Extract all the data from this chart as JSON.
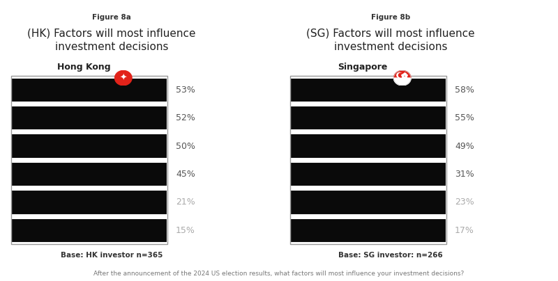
{
  "hk_title_label": "Figure 8a",
  "hk_title": "(HK) Factors will most influence\ninvestment decisions",
  "hk_subtitle": "Hong Kong",
  "hk_values": [
    53,
    52,
    50,
    45,
    21,
    15
  ],
  "hk_base": "Base: HK investor n=365",
  "sg_title_label": "Figure 8b",
  "sg_title": "(SG) Factors will most influence\ninvestment decisions",
  "sg_subtitle": "Singapore",
  "sg_values": [
    58,
    55,
    49,
    31,
    23,
    17
  ],
  "sg_base": "Base: SG investor: n=266",
  "bar_color": "#0a0a0a",
  "bar_edge_color": "#ffffff",
  "value_color_high": "#555555",
  "value_color_low": "#aaaaaa",
  "threshold": 30,
  "background_color": "#ffffff",
  "footnote": "After the announcement of the 2024 US election results, what factors will most influence your investment decisions?",
  "title_label_fontsize": 7.5,
  "title_fontsize": 11,
  "subtitle_fontsize": 9,
  "value_fontsize": 9,
  "base_fontsize": 7.5,
  "footnote_fontsize": 6.5
}
